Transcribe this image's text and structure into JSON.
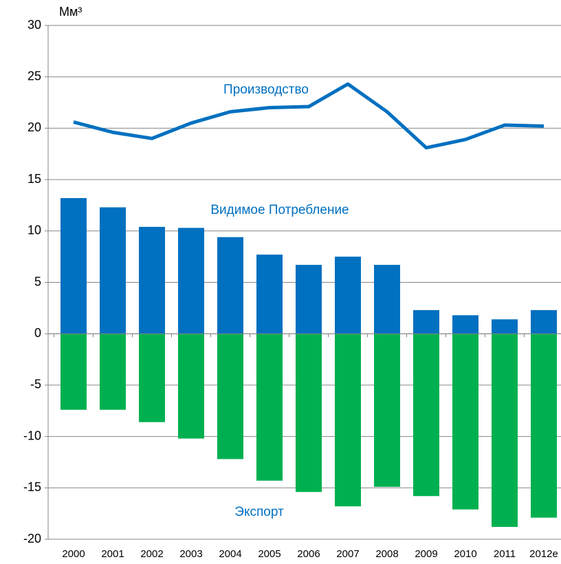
{
  "chart_data": {
    "type": "bar",
    "y_label": "Мм³",
    "categories": [
      "2000",
      "2001",
      "2002",
      "2003",
      "2004",
      "2005",
      "2006",
      "2007",
      "2008",
      "2009",
      "2010",
      "2011",
      "2012e"
    ],
    "series": [
      {
        "name": "Видимое Потребление",
        "type": "bar",
        "color": "#0070c0",
        "values": [
          13.2,
          12.3,
          10.4,
          10.3,
          9.4,
          7.7,
          6.7,
          7.5,
          6.7,
          2.3,
          1.8,
          1.4,
          2.3
        ]
      },
      {
        "name": "Экспорт",
        "type": "bar",
        "color": "#00b050",
        "values": [
          -7.4,
          -7.4,
          -8.6,
          -10.2,
          -12.2,
          -14.3,
          -15.4,
          -16.8,
          -14.9,
          -15.8,
          -17.1,
          -18.8,
          -17.9
        ]
      },
      {
        "name": "Производство",
        "type": "line",
        "color": "#0070c0",
        "values": [
          20.6,
          19.6,
          19.0,
          20.5,
          21.6,
          22.0,
          22.1,
          24.3,
          21.6,
          18.1,
          18.9,
          20.3,
          20.2
        ]
      }
    ],
    "ylim": [
      -20,
      30
    ],
    "yticks": [
      -20,
      -15,
      -10,
      -5,
      0,
      5,
      10,
      15,
      20,
      25,
      30
    ],
    "grid": true
  }
}
